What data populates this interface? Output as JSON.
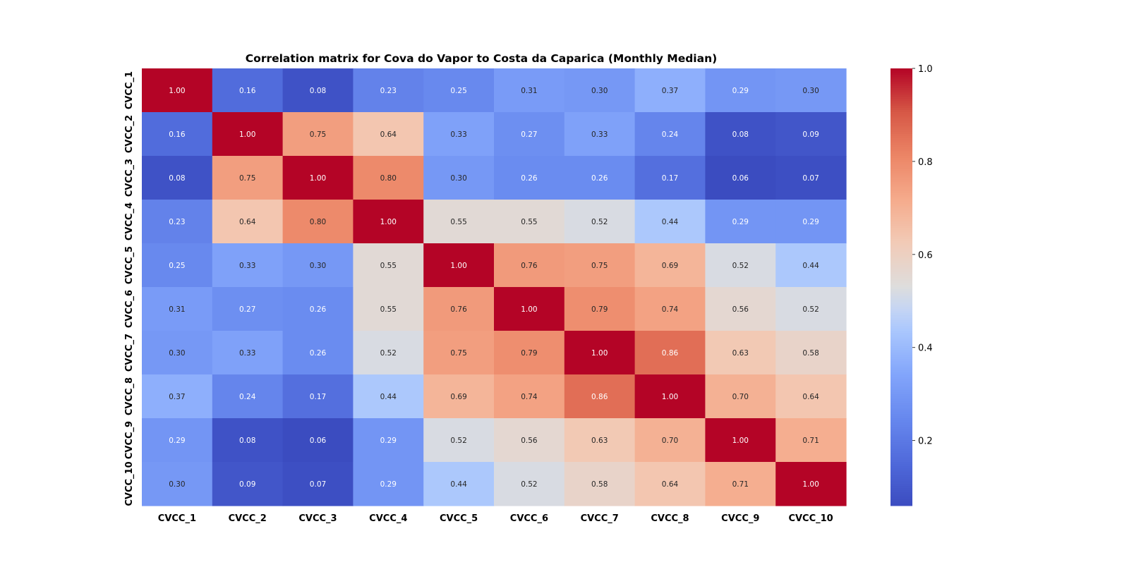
{
  "chart_data": {
    "type": "heatmap",
    "title": "Correlation matrix for Cova do Vapor to Costa da Caparica (Monthly Median)",
    "x_labels": [
      "CVCC_1",
      "CVCC_2",
      "CVCC_3",
      "CVCC_4",
      "CVCC_5",
      "CVCC_6",
      "CVCC_7",
      "CVCC_8",
      "CVCC_9",
      "CVCC_10"
    ],
    "y_labels": [
      "CVCC_1",
      "CVCC_2",
      "CVCC_3",
      "CVCC_4",
      "CVCC_5",
      "CVCC_6",
      "CVCC_7",
      "CVCC_8",
      "CVCC_9",
      "CVCC_10"
    ],
    "values": [
      [
        1.0,
        0.16,
        0.08,
        0.23,
        0.25,
        0.31,
        0.3,
        0.37,
        0.29,
        0.3
      ],
      [
        0.16,
        1.0,
        0.75,
        0.64,
        0.33,
        0.27,
        0.33,
        0.24,
        0.08,
        0.09
      ],
      [
        0.08,
        0.75,
        1.0,
        0.8,
        0.3,
        0.26,
        0.26,
        0.17,
        0.06,
        0.07
      ],
      [
        0.23,
        0.64,
        0.8,
        1.0,
        0.55,
        0.55,
        0.52,
        0.44,
        0.29,
        0.29
      ],
      [
        0.25,
        0.33,
        0.3,
        0.55,
        1.0,
        0.76,
        0.75,
        0.69,
        0.52,
        0.44
      ],
      [
        0.31,
        0.27,
        0.26,
        0.55,
        0.76,
        1.0,
        0.79,
        0.74,
        0.56,
        0.52
      ],
      [
        0.3,
        0.33,
        0.26,
        0.52,
        0.75,
        0.79,
        1.0,
        0.86,
        0.63,
        0.58
      ],
      [
        0.37,
        0.24,
        0.17,
        0.44,
        0.69,
        0.74,
        0.86,
        1.0,
        0.7,
        0.64
      ],
      [
        0.29,
        0.08,
        0.06,
        0.29,
        0.52,
        0.56,
        0.63,
        0.7,
        1.0,
        0.71
      ],
      [
        0.3,
        0.09,
        0.07,
        0.29,
        0.44,
        0.52,
        0.58,
        0.64,
        0.71,
        1.0
      ]
    ],
    "value_format": "0.00",
    "colormap": "coolwarm",
    "vmin": 0.06,
    "vmax": 1.0,
    "colorbar_ticks": [
      "0.2",
      "0.4",
      "0.6",
      "0.8",
      "1.0"
    ],
    "colorbar_tick_values": [
      0.2,
      0.4,
      0.6,
      0.8,
      1.0
    ],
    "colors": {
      "cold": "#3b4cc0",
      "neutral": "#dddddd",
      "hot": "#b40426",
      "text_dark": "#262626",
      "text_light": "#ffffff"
    }
  }
}
